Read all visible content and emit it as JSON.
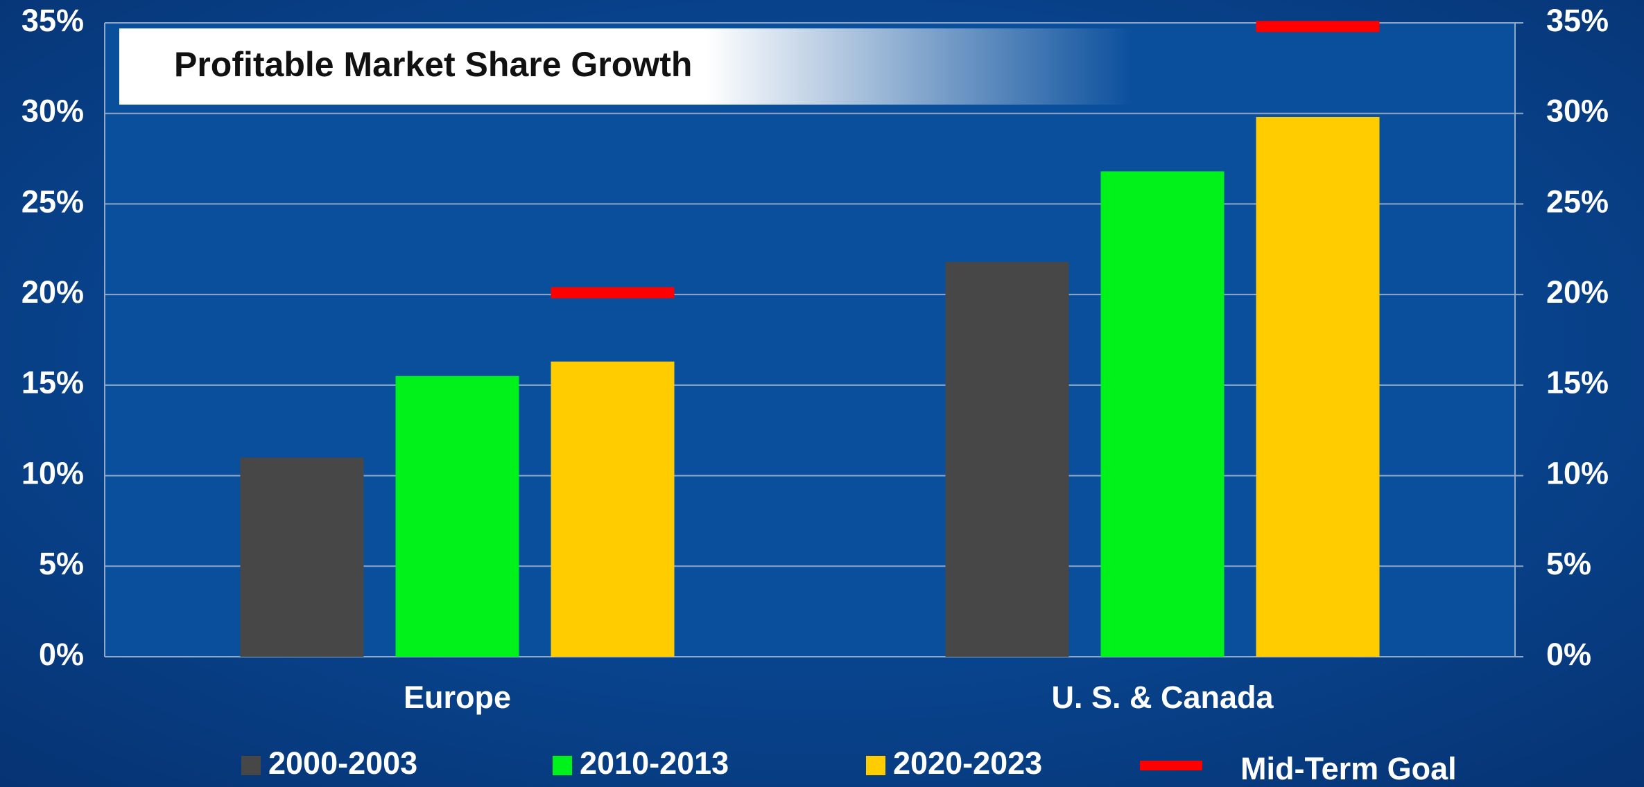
{
  "chart_data": {
    "type": "bar",
    "title": "Profitable Market Share Growth",
    "categories": [
      "Europe",
      "U. S. & Canada"
    ],
    "series": [
      {
        "name": "2000-2003",
        "color": "#474747",
        "values": [
          11,
          21.8
        ]
      },
      {
        "name": "2010-2013",
        "color": "#00f21b",
        "values": [
          15.5,
          26.8
        ]
      },
      {
        "name": "2020-2023",
        "color": "#ffcc00",
        "values": [
          16.3,
          29.8
        ]
      },
      {
        "name": "Mid-Term Goal",
        "color": "#ff0000",
        "marker": "dash",
        "values": [
          20.1,
          34.8
        ]
      }
    ],
    "ylim": [
      0,
      35
    ],
    "yticks": [
      {
        "value": 0,
        "label": "0%"
      },
      {
        "value": 5,
        "label": "5%"
      },
      {
        "value": 10,
        "label": "10%"
      },
      {
        "value": 15,
        "label": "15%"
      },
      {
        "value": 20,
        "label": "20%"
      },
      {
        "value": 25,
        "label": "25%"
      },
      {
        "value": 30,
        "label": "30%"
      },
      {
        "value": 35,
        "label": "35%"
      }
    ],
    "y2lim": [
      0,
      35
    ],
    "y2ticks": [
      {
        "value": 0,
        "label": "0%"
      },
      {
        "value": 5,
        "label": "5%"
      },
      {
        "value": 10,
        "label": "10%"
      },
      {
        "value": 15,
        "label": "15%"
      },
      {
        "value": 20,
        "label": "20%"
      },
      {
        "value": 25,
        "label": "25%"
      },
      {
        "value": 30,
        "label": "30%"
      },
      {
        "value": 35,
        "label": "35%"
      }
    ],
    "grid": true,
    "legend": "bottom"
  }
}
